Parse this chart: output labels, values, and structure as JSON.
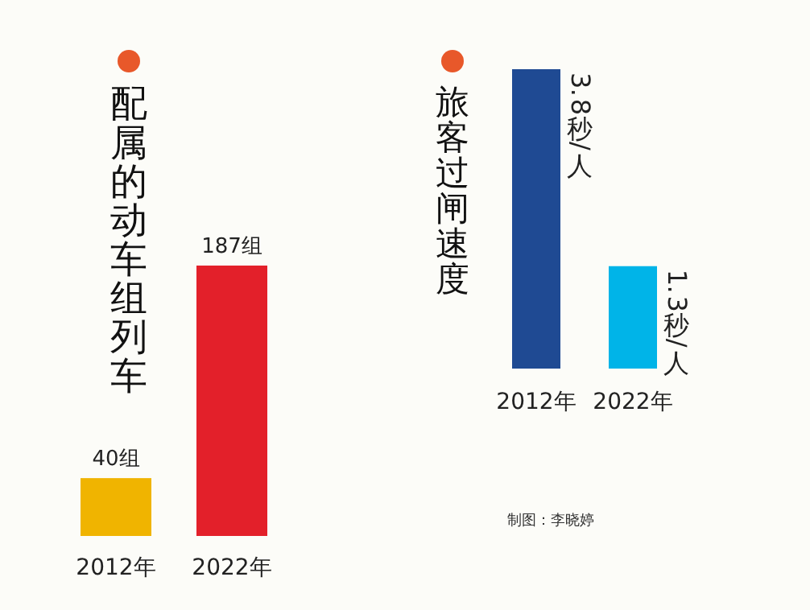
{
  "chart_data": [
    {
      "type": "bar",
      "title": "配属的动车组列车",
      "categories": [
        "2012年",
        "2022年"
      ],
      "values": [
        40,
        187
      ],
      "colors": [
        "#f0b400",
        "#e3202a"
      ],
      "value_labels": [
        "40组",
        "187组"
      ]
    },
    {
      "type": "bar",
      "title": "旅客过闸速度",
      "categories": [
        "2012年",
        "2022年"
      ],
      "values": [
        3.8,
        1.3
      ],
      "colors": [
        "#1f4a93",
        "#00b4e8"
      ],
      "value_labels": [
        "3.8秒/人",
        "1.3秒/人"
      ],
      "annotations": [
        "制图：李晓婷"
      ]
    }
  ]
}
